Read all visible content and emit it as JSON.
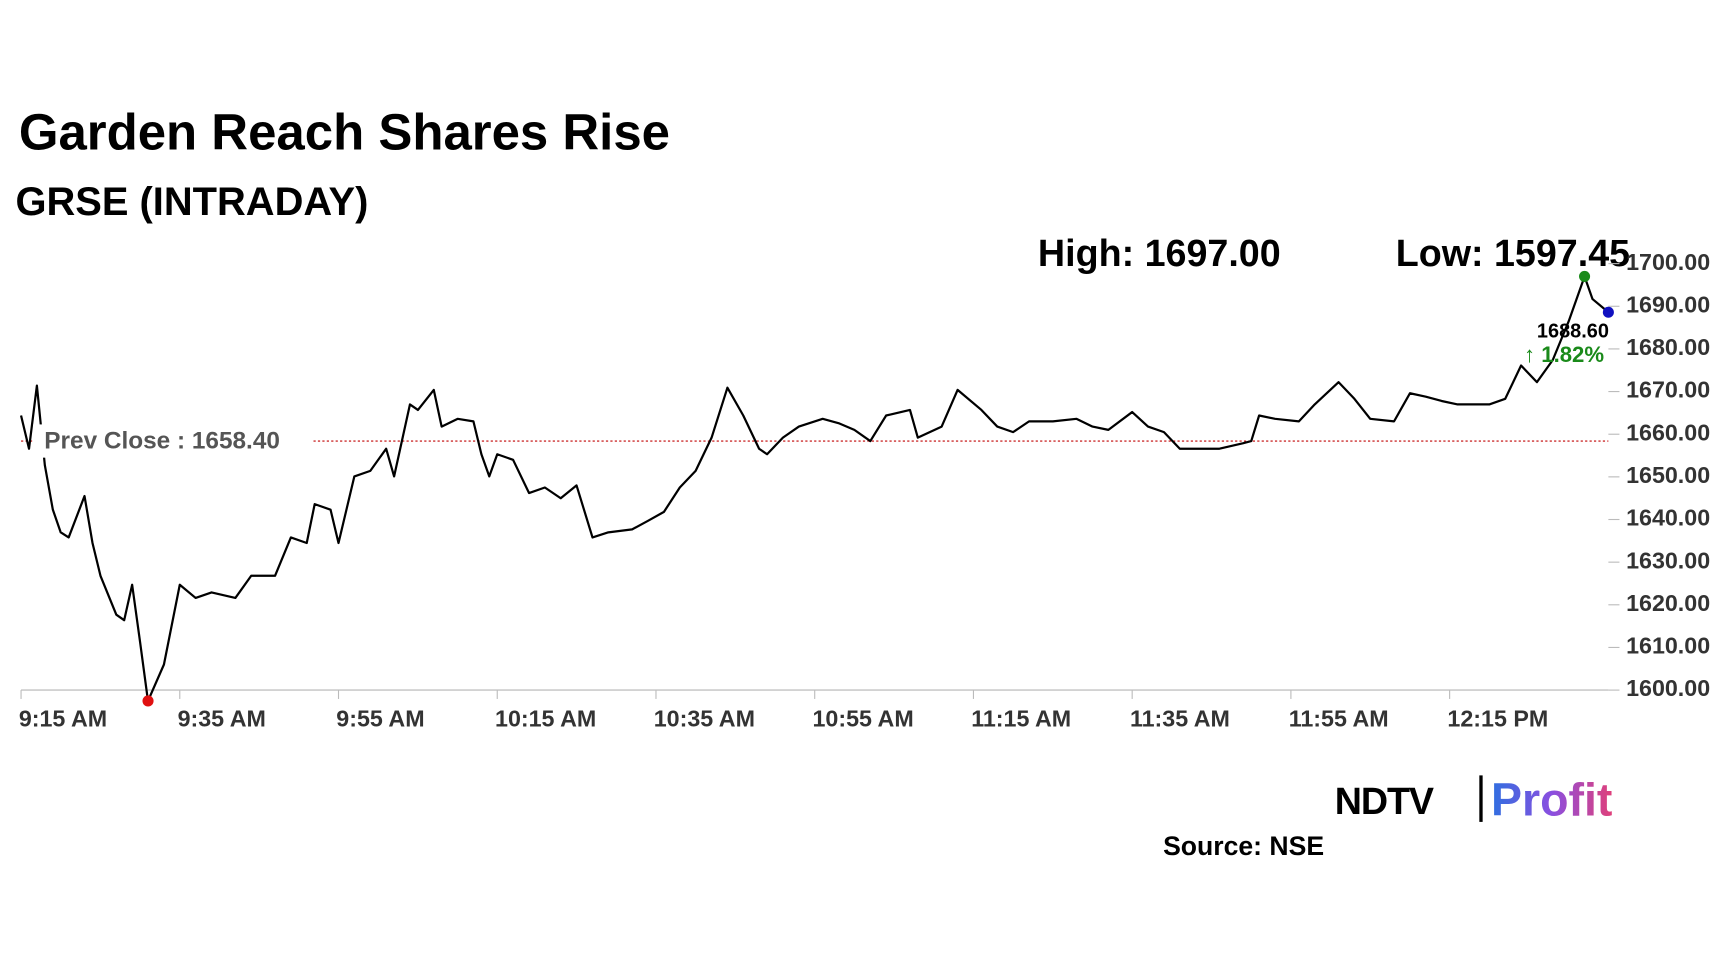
{
  "chart_data": {
    "type": "line",
    "title": "Garden Reach Shares Rise",
    "subtitle": "GRSE (INTRADAY)",
    "high": {
      "value": 1697,
      "label": "High: 1697.00"
    },
    "low": {
      "value": 1597.45,
      "label": "Low: 1597.45"
    },
    "prev_close": {
      "value": 1658.4,
      "label": "Prev Close : 1658.40"
    },
    "last": {
      "value": 1688.6,
      "label": "1688.60"
    },
    "change": {
      "value": 1.82,
      "label": "↑ 1.82%"
    },
    "color": "#000000",
    "x": [
      "9:15 AM",
      "9:16 AM",
      "9:17 AM",
      "9:18 AM",
      "9:19 AM",
      "9:20 AM",
      "9:21 AM",
      "9:23 AM",
      "9:24 AM",
      "9:25 AM",
      "9:27 AM",
      "9:28 AM",
      "9:29 AM",
      "9:30 AM",
      "9:31 AM",
      "9:33 AM",
      "9:35 AM",
      "9:37 AM",
      "9:39 AM",
      "9:42 AM",
      "9:44 AM",
      "9:47 AM",
      "9:49 AM",
      "9:51 AM",
      "9:52 AM",
      "9:54 AM",
      "9:55 AM",
      "9:57 AM",
      "9:59 AM",
      "10:01 AM",
      "10:02 AM",
      "10:04 AM",
      "10:05 AM",
      "10:07 AM",
      "10:08 AM",
      "10:10 AM",
      "10:12 AM",
      "10:13 AM",
      "10:14 AM",
      "10:15 AM",
      "10:17 AM",
      "10:19 AM",
      "10:21 AM",
      "10:23 AM",
      "10:25 AM",
      "10:27 AM",
      "10:29 AM",
      "10:32 AM",
      "10:34 AM",
      "10:36 AM",
      "10:38 AM",
      "10:40 AM",
      "10:42 AM",
      "10:44 AM",
      "10:46 AM",
      "10:48 AM",
      "10:49 AM",
      "10:51 AM",
      "10:53 AM",
      "10:56 AM",
      "10:58 AM",
      "11:00 AM",
      "11:02 AM",
      "11:04 AM",
      "11:07 AM",
      "11:08 AM",
      "11:11 AM",
      "11:13 AM",
      "11:16 AM",
      "11:18 AM",
      "11:20 AM",
      "11:22 AM",
      "11:25 AM",
      "11:28 AM",
      "11:30 AM",
      "11:32 AM",
      "11:35 AM",
      "11:37 AM",
      "11:39 AM",
      "11:41 AM",
      "11:43 AM",
      "11:46 AM",
      "11:49 AM",
      "11:50 AM",
      "11:51 AM",
      "11:53 AM",
      "11:56 AM",
      "11:58 AM",
      "12:01 PM",
      "12:03 PM",
      "12:05 PM",
      "12:08 PM",
      "12:10 PM",
      "12:12 PM",
      "12:14 PM",
      "12:16 PM",
      "12:20 PM",
      "12:22 PM",
      "12:24 PM",
      "12:26 PM",
      "12:28 PM",
      "12:30 PM",
      "12:32 PM",
      "12:33 PM",
      "12:35 PM"
    ],
    "values": [
      1664.4,
      1656.6,
      1671.4,
      1652.7,
      1642.3,
      1637.0,
      1635.8,
      1645.5,
      1634.5,
      1626.8,
      1617.7,
      1616.4,
      1624.7,
      1611.2,
      1597.45,
      1606.0,
      1624.7,
      1621.6,
      1622.9,
      1621.6,
      1626.8,
      1626.8,
      1635.8,
      1634.5,
      1643.6,
      1642.3,
      1634.5,
      1650.1,
      1651.4,
      1656.6,
      1650.1,
      1667.0,
      1665.7,
      1670.4,
      1661.8,
      1663.6,
      1663.0,
      1655.3,
      1650.1,
      1655.3,
      1654.0,
      1646.2,
      1647.5,
      1645.0,
      1648.0,
      1635.8,
      1637.0,
      1637.7,
      1639.7,
      1641.8,
      1647.5,
      1651.4,
      1659.2,
      1670.9,
      1664.4,
      1656.6,
      1655.3,
      1659.2,
      1661.8,
      1663.6,
      1662.6,
      1661.0,
      1658.4,
      1664.4,
      1665.7,
      1659.2,
      1661.8,
      1670.4,
      1665.7,
      1661.8,
      1660.5,
      1663.0,
      1663.0,
      1663.6,
      1661.8,
      1661.0,
      1665.2,
      1661.8,
      1660.5,
      1656.6,
      1656.6,
      1656.6,
      1657.9,
      1658.4,
      1664.4,
      1663.6,
      1663.0,
      1667.0,
      1672.2,
      1668.3,
      1663.6,
      1663.0,
      1669.6,
      1668.8,
      1667.8,
      1667.0,
      1667.0,
      1668.3,
      1676.1,
      1672.2,
      1677.4,
      1686.5,
      1697,
      1691.7,
      1688.6
    ],
    "xlim": [
      "9:15 AM",
      "12:35 PM"
    ],
    "xticks": [
      "9:15 AM",
      "9:35 AM",
      "9:55 AM",
      "10:15 AM",
      "10:35 AM",
      "10:55 AM",
      "11:15 AM",
      "11:35 AM",
      "11:55 AM",
      "12:15 PM"
    ],
    "ylim": [
      1600,
      1700
    ],
    "yticks": [
      {
        "value": 1600,
        "label": "1600.00"
      },
      {
        "value": 1610,
        "label": "1610.00"
      },
      {
        "value": 1620,
        "label": "1620.00"
      },
      {
        "value": 1630,
        "label": "1630.00"
      },
      {
        "value": 1640,
        "label": "1640.00"
      },
      {
        "value": 1650,
        "label": "1650.00"
      },
      {
        "value": 1660,
        "label": "1660.00"
      },
      {
        "value": 1670,
        "label": "1670.00"
      },
      {
        "value": 1680,
        "label": "1680.00"
      },
      {
        "value": 1690,
        "label": "1690.00"
      },
      {
        "value": 1700,
        "label": "1700.00"
      }
    ],
    "grid": false,
    "source": "Source: NSE",
    "logo": {
      "brand": "NDTV",
      "product": "Profit"
    }
  }
}
